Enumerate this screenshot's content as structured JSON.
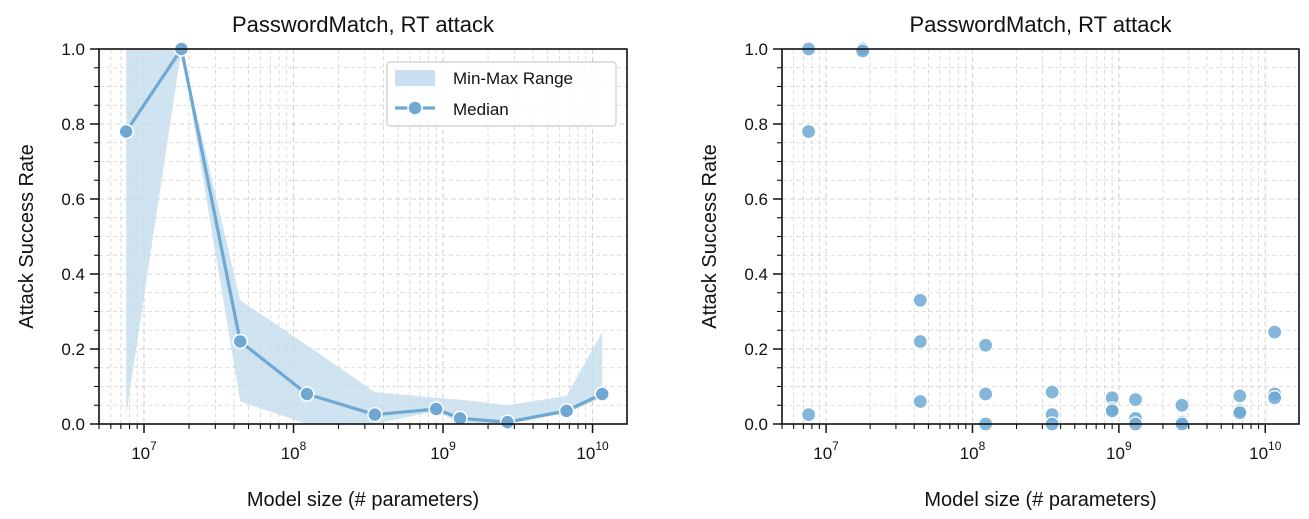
{
  "chart_data": [
    {
      "type": "line",
      "title": "PasswordMatch, RT attack",
      "xlabel": "Model size (# parameters)",
      "ylabel": "Attack Success Rate",
      "x_scale": "log",
      "xlim": [
        5000000.0,
        17000000000.0
      ],
      "ylim": [
        0,
        1.0
      ],
      "x_ticks": [
        {
          "base": "10",
          "exp": "7"
        },
        {
          "base": "10",
          "exp": "8"
        },
        {
          "base": "10",
          "exp": "9"
        },
        {
          "base": "10",
          "exp": "10"
        }
      ],
      "y_ticks": [
        "0.0",
        "0.2",
        "0.4",
        "0.6",
        "0.8",
        "1.0"
      ],
      "grid": true,
      "legend_position": "top-right",
      "legend": [
        "Min-Max Range",
        "Median"
      ],
      "color": "#6fa8d3",
      "fill_color": "#c4dced",
      "series": [
        {
          "name": "Median",
          "x": [
            7600000.0,
            17800000.0,
            44000000.0,
            123000000.0,
            350000000.0,
            900000000.0,
            1300000000.0,
            2700000000.0,
            6700000000.0,
            11600000000.0
          ],
          "y": [
            0.78,
            1.0,
            0.22,
            0.08,
            0.025,
            0.04,
            0.015,
            0.005,
            0.035,
            0.08
          ]
        },
        {
          "name": "Min-Max Range",
          "x": [
            7600000.0,
            17800000.0,
            44000000.0,
            123000000.0,
            350000000.0,
            900000000.0,
            1300000000.0,
            2700000000.0,
            6700000000.0,
            11600000000.0
          ],
          "min": [
            0.025,
            1.0,
            0.06,
            0.0,
            0.0,
            0.035,
            0.0,
            0.0,
            0.03,
            0.07
          ],
          "max": [
            1.0,
            1.0,
            0.33,
            0.21,
            0.085,
            0.07,
            0.065,
            0.05,
            0.075,
            0.245
          ]
        }
      ]
    },
    {
      "type": "scatter",
      "title": "PasswordMatch, RT attack",
      "xlabel": "Model size (# parameters)",
      "ylabel": "Attack Success Rate",
      "x_scale": "log",
      "xlim": [
        5000000.0,
        17000000000.0
      ],
      "ylim": [
        0,
        1.0
      ],
      "x_ticks": [
        {
          "base": "10",
          "exp": "7"
        },
        {
          "base": "10",
          "exp": "8"
        },
        {
          "base": "10",
          "exp": "9"
        },
        {
          "base": "10",
          "exp": "10"
        }
      ],
      "y_ticks": [
        "0.0",
        "0.2",
        "0.4",
        "0.6",
        "0.8",
        "1.0"
      ],
      "grid": true,
      "color": "#6fa8d3",
      "points": [
        {
          "x": 7600000.0,
          "y": 1.0
        },
        {
          "x": 7600000.0,
          "y": 0.78
        },
        {
          "x": 7600000.0,
          "y": 0.025
        },
        {
          "x": 17800000.0,
          "y": 1.0
        },
        {
          "x": 17800000.0,
          "y": 0.995
        },
        {
          "x": 44000000.0,
          "y": 0.33
        },
        {
          "x": 44000000.0,
          "y": 0.22
        },
        {
          "x": 44000000.0,
          "y": 0.06
        },
        {
          "x": 123000000.0,
          "y": 0.21
        },
        {
          "x": 123000000.0,
          "y": 0.08
        },
        {
          "x": 123000000.0,
          "y": 0.0
        },
        {
          "x": 350000000.0,
          "y": 0.085
        },
        {
          "x": 350000000.0,
          "y": 0.025
        },
        {
          "x": 350000000.0,
          "y": 0.0
        },
        {
          "x": 900000000.0,
          "y": 0.07
        },
        {
          "x": 900000000.0,
          "y": 0.04
        },
        {
          "x": 900000000.0,
          "y": 0.035
        },
        {
          "x": 1300000000.0,
          "y": 0.065
        },
        {
          "x": 1300000000.0,
          "y": 0.015
        },
        {
          "x": 1300000000.0,
          "y": 0.0
        },
        {
          "x": 2700000000.0,
          "y": 0.05
        },
        {
          "x": 2700000000.0,
          "y": 0.005
        },
        {
          "x": 2700000000.0,
          "y": 0.0
        },
        {
          "x": 6700000000.0,
          "y": 0.075
        },
        {
          "x": 6700000000.0,
          "y": 0.035
        },
        {
          "x": 6700000000.0,
          "y": 0.03
        },
        {
          "x": 11600000000.0,
          "y": 0.245
        },
        {
          "x": 11600000000.0,
          "y": 0.08
        },
        {
          "x": 11600000000.0,
          "y": 0.07
        }
      ]
    }
  ]
}
